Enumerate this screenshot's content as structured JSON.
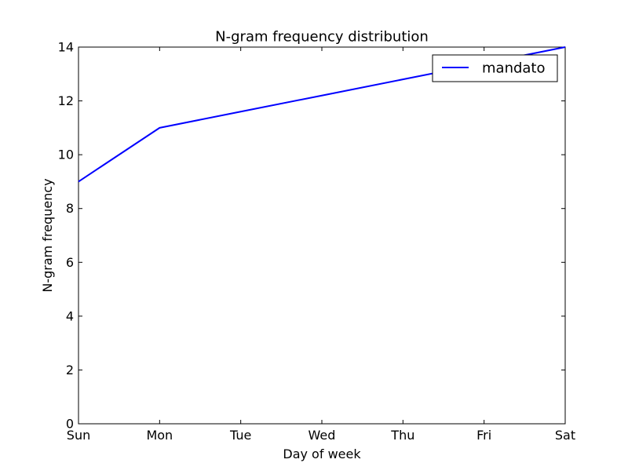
{
  "chart_data": {
    "type": "line",
    "title": "N-gram frequency distribution",
    "xlabel": "Day of week",
    "ylabel": "N-gram frequency",
    "categories": [
      "Sun",
      "Mon",
      "Tue",
      "Wed",
      "Thu",
      "Fri",
      "Sat"
    ],
    "x_ticks": [
      "Sun",
      "Mon",
      "Tue",
      "Wed",
      "Thu",
      "Fri",
      "Sat"
    ],
    "y_ticks": [
      "0",
      "2",
      "4",
      "6",
      "8",
      "10",
      "12",
      "14"
    ],
    "ylim": [
      0,
      14
    ],
    "grid": false,
    "legend_position": "top-right",
    "series": [
      {
        "name": "mandato",
        "color": "#0000ff",
        "values": [
          9,
          11,
          11.6,
          12.2,
          12.8,
          13.4,
          14
        ]
      }
    ]
  }
}
